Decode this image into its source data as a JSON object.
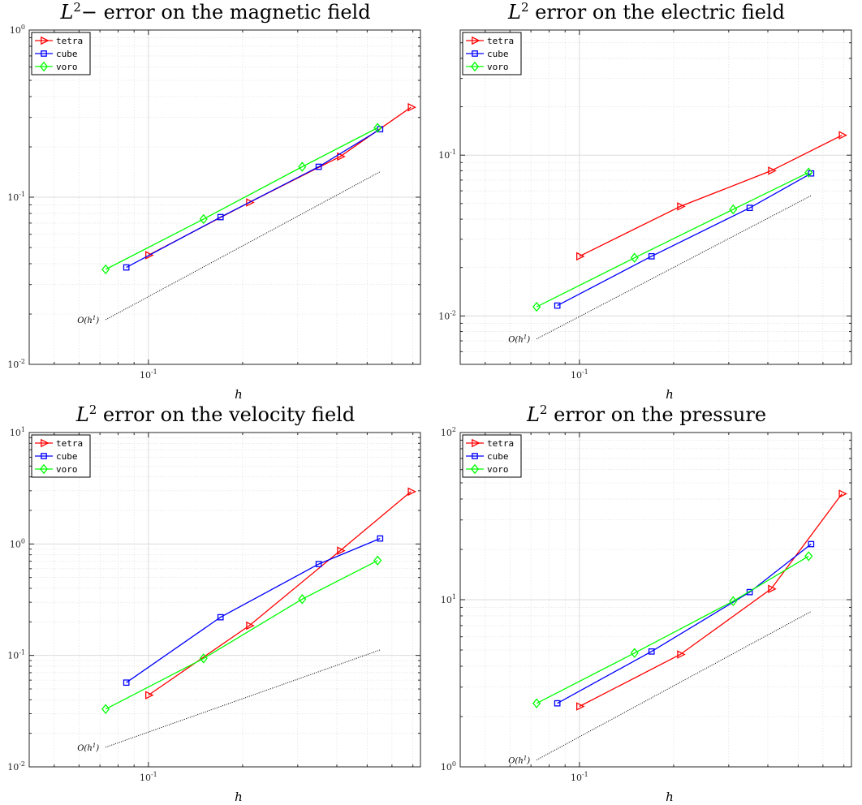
{
  "colors": {
    "tetra": "#ff0000",
    "cube": "#0000ff",
    "voro": "#00ff00",
    "reference": "#000000",
    "grid": "#dcdcdc",
    "axis": "#262626"
  },
  "chart_data": [
    {
      "type": "line",
      "title_symbol": "L",
      "title_sup": "2",
      "title_rest": "− error on the magnetic field",
      "xlabel": "h",
      "ylabel": "",
      "xscale": "log",
      "yscale": "log",
      "xlim": [
        0.0416,
        0.74
      ],
      "ylim": [
        0.01,
        1
      ],
      "grid": true,
      "legend_position": "top-left",
      "x_tick_labels": [
        {
          "value": 0.1,
          "label": "10",
          "exp": "-1"
        }
      ],
      "y_tick_labels": [
        {
          "value": 0.01,
          "label": "10",
          "exp": "-2"
        },
        {
          "value": 0.1,
          "label": "10",
          "exp": "-1"
        },
        {
          "value": 1,
          "label": "10",
          "exp": "0"
        }
      ],
      "series": [
        {
          "name": "tetra",
          "marker": "triangle-right",
          "x": [
            0.1,
            0.21,
            0.41,
            0.69
          ],
          "y": [
            0.045,
            0.093,
            0.175,
            0.345
          ]
        },
        {
          "name": "cube",
          "marker": "square",
          "x": [
            0.085,
            0.17,
            0.35,
            0.55
          ],
          "y": [
            0.038,
            0.076,
            0.152,
            0.255
          ]
        },
        {
          "name": "voro",
          "marker": "diamond",
          "x": [
            0.073,
            0.15,
            0.31,
            0.54
          ],
          "y": [
            0.037,
            0.074,
            0.152,
            0.26
          ]
        }
      ],
      "reference": {
        "label": "O(h",
        "label_sup": "1",
        "label_end": ")",
        "x": [
          0.073,
          0.55
        ],
        "y": [
          0.0185,
          0.142
        ]
      }
    },
    {
      "type": "line",
      "title_symbol": "L",
      "title_sup": "2",
      "title_rest": " error on the electric field",
      "xlabel": "h",
      "ylabel": "",
      "xscale": "log",
      "yscale": "log",
      "xlim": [
        0.0416,
        0.74
      ],
      "ylim": [
        0.005,
        0.6
      ],
      "grid": true,
      "legend_position": "top-left",
      "x_tick_labels": [
        {
          "value": 0.1,
          "label": "10",
          "exp": "-1"
        }
      ],
      "y_tick_labels": [
        {
          "value": 0.01,
          "label": "10",
          "exp": "-2"
        },
        {
          "value": 0.1,
          "label": "10",
          "exp": "-1"
        }
      ],
      "series": [
        {
          "name": "tetra",
          "marker": "triangle-right",
          "x": [
            0.1,
            0.21,
            0.41,
            0.69
          ],
          "y": [
            0.0235,
            0.048,
            0.08,
            0.133
          ]
        },
        {
          "name": "cube",
          "marker": "square",
          "x": [
            0.085,
            0.17,
            0.35,
            0.55
          ],
          "y": [
            0.0116,
            0.0235,
            0.047,
            0.077
          ]
        },
        {
          "name": "voro",
          "marker": "diamond",
          "x": [
            0.073,
            0.15,
            0.31,
            0.54
          ],
          "y": [
            0.0114,
            0.023,
            0.046,
            0.078
          ]
        }
      ],
      "reference": {
        "label": "O(h",
        "label_sup": "1",
        "label_end": ")",
        "x": [
          0.073,
          0.55
        ],
        "y": [
          0.0072,
          0.056
        ]
      }
    },
    {
      "type": "line",
      "title_symbol": "L",
      "title_sup": "2",
      "title_rest": " error on the velocity field",
      "xlabel": "h",
      "ylabel": "",
      "xscale": "log",
      "yscale": "log",
      "xlim": [
        0.0416,
        0.74
      ],
      "ylim": [
        0.01,
        10
      ],
      "grid": true,
      "legend_position": "top-left",
      "x_tick_labels": [
        {
          "value": 0.1,
          "label": "10",
          "exp": "-1"
        }
      ],
      "y_tick_labels": [
        {
          "value": 0.01,
          "label": "10",
          "exp": "-2"
        },
        {
          "value": 0.1,
          "label": "10",
          "exp": "-1"
        },
        {
          "value": 1,
          "label": "10",
          "exp": "0"
        },
        {
          "value": 10,
          "label": "10",
          "exp": "1"
        }
      ],
      "series": [
        {
          "name": "tetra",
          "marker": "triangle-right",
          "x": [
            0.1,
            0.21,
            0.41,
            0.69
          ],
          "y": [
            0.044,
            0.185,
            0.87,
            2.95
          ]
        },
        {
          "name": "cube",
          "marker": "square",
          "x": [
            0.085,
            0.17,
            0.35,
            0.55
          ],
          "y": [
            0.057,
            0.22,
            0.66,
            1.12
          ]
        },
        {
          "name": "voro",
          "marker": "diamond",
          "x": [
            0.073,
            0.15,
            0.31,
            0.54
          ],
          "y": [
            0.033,
            0.094,
            0.32,
            0.71
          ]
        }
      ],
      "reference": {
        "label": "O(h",
        "label_sup": "1",
        "label_end": ")",
        "x": [
          0.073,
          0.55
        ],
        "y": [
          0.015,
          0.112
        ]
      }
    },
    {
      "type": "line",
      "title_symbol": "L",
      "title_sup": "2",
      "title_rest": " error on the pressure",
      "xlabel": "h",
      "ylabel": "",
      "xscale": "log",
      "yscale": "log",
      "xlim": [
        0.0416,
        0.74
      ],
      "ylim": [
        1,
        100
      ],
      "grid": true,
      "legend_position": "top-left",
      "x_tick_labels": [
        {
          "value": 0.1,
          "label": "10",
          "exp": "-1"
        }
      ],
      "y_tick_labels": [
        {
          "value": 1,
          "label": "10",
          "exp": "0"
        },
        {
          "value": 10,
          "label": "10",
          "exp": "1"
        },
        {
          "value": 100,
          "label": "10",
          "exp": "2"
        }
      ],
      "series": [
        {
          "name": "tetra",
          "marker": "triangle-right",
          "x": [
            0.1,
            0.21,
            0.41,
            0.69
          ],
          "y": [
            2.3,
            4.7,
            11.6,
            43
          ]
        },
        {
          "name": "cube",
          "marker": "square",
          "x": [
            0.085,
            0.17,
            0.35,
            0.55
          ],
          "y": [
            2.4,
            4.9,
            11.1,
            21.5
          ]
        },
        {
          "name": "voro",
          "marker": "diamond",
          "x": [
            0.073,
            0.15,
            0.31,
            0.54
          ],
          "y": [
            2.4,
            4.8,
            9.8,
            18.2
          ]
        }
      ],
      "reference": {
        "label": "O(h",
        "label_sup": "1",
        "label_end": ")",
        "x": [
          0.073,
          0.55
        ],
        "y": [
          1.1,
          8.5
        ]
      }
    }
  ]
}
